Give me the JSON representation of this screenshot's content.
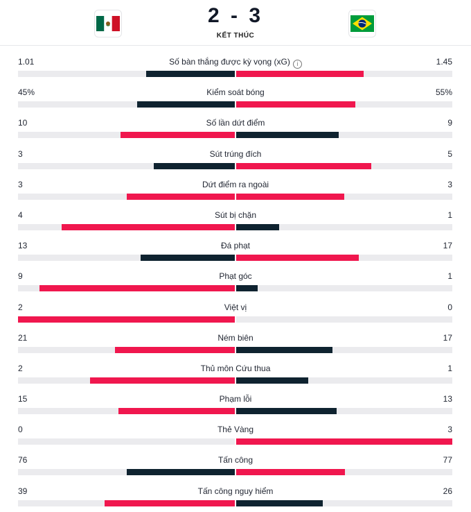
{
  "header": {
    "score": "2 - 3",
    "status": "KẾT THÚC",
    "home_flag": "mexico-flag",
    "away_flag": "brazil-flag"
  },
  "colors": {
    "winner": "#f0174e",
    "loser": "#0f2330",
    "track": "#ebebee"
  },
  "stats": [
    {
      "label": "Số bàn thắng được kỳ vọng (xG)",
      "home": "1.01",
      "away": "1.45",
      "home_ratio": 0.41,
      "away_ratio": 0.59,
      "info": true
    },
    {
      "label": "Kiểm soát bóng",
      "home": "45%",
      "away": "55%",
      "home_ratio": 0.45,
      "away_ratio": 0.55
    },
    {
      "label": "Số lần dứt điểm",
      "home": "10",
      "away": "9",
      "home_ratio": 0.526,
      "away_ratio": 0.474
    },
    {
      "label": "Sút trúng đích",
      "home": "3",
      "away": "5",
      "home_ratio": 0.375,
      "away_ratio": 0.625
    },
    {
      "label": "Dứt điểm ra ngoài",
      "home": "3",
      "away": "3",
      "home_ratio": 0.5,
      "away_ratio": 0.5
    },
    {
      "label": "Sút bị chặn",
      "home": "4",
      "away": "1",
      "home_ratio": 0.8,
      "away_ratio": 0.2
    },
    {
      "label": "Đá phạt",
      "home": "13",
      "away": "17",
      "home_ratio": 0.433,
      "away_ratio": 0.567
    },
    {
      "label": "Phạt góc",
      "home": "9",
      "away": "1",
      "home_ratio": 0.9,
      "away_ratio": 0.1
    },
    {
      "label": "Việt vị",
      "home": "2",
      "away": "0",
      "home_ratio": 1.0,
      "away_ratio": 0.0
    },
    {
      "label": "Ném biên",
      "home": "21",
      "away": "17",
      "home_ratio": 0.553,
      "away_ratio": 0.447
    },
    {
      "label": "Thủ môn Cứu thua",
      "home": "2",
      "away": "1",
      "home_ratio": 0.667,
      "away_ratio": 0.333
    },
    {
      "label": "Phạm lỗi",
      "home": "15",
      "away": "13",
      "home_ratio": 0.536,
      "away_ratio": 0.464
    },
    {
      "label": "Thẻ Vàng",
      "home": "0",
      "away": "3",
      "home_ratio": 0.0,
      "away_ratio": 1.0
    },
    {
      "label": "Tấn công",
      "home": "76",
      "away": "77",
      "home_ratio": 0.497,
      "away_ratio": 0.503
    },
    {
      "label": "Tấn công nguy hiểm",
      "home": "39",
      "away": "26",
      "home_ratio": 0.6,
      "away_ratio": 0.4
    }
  ]
}
